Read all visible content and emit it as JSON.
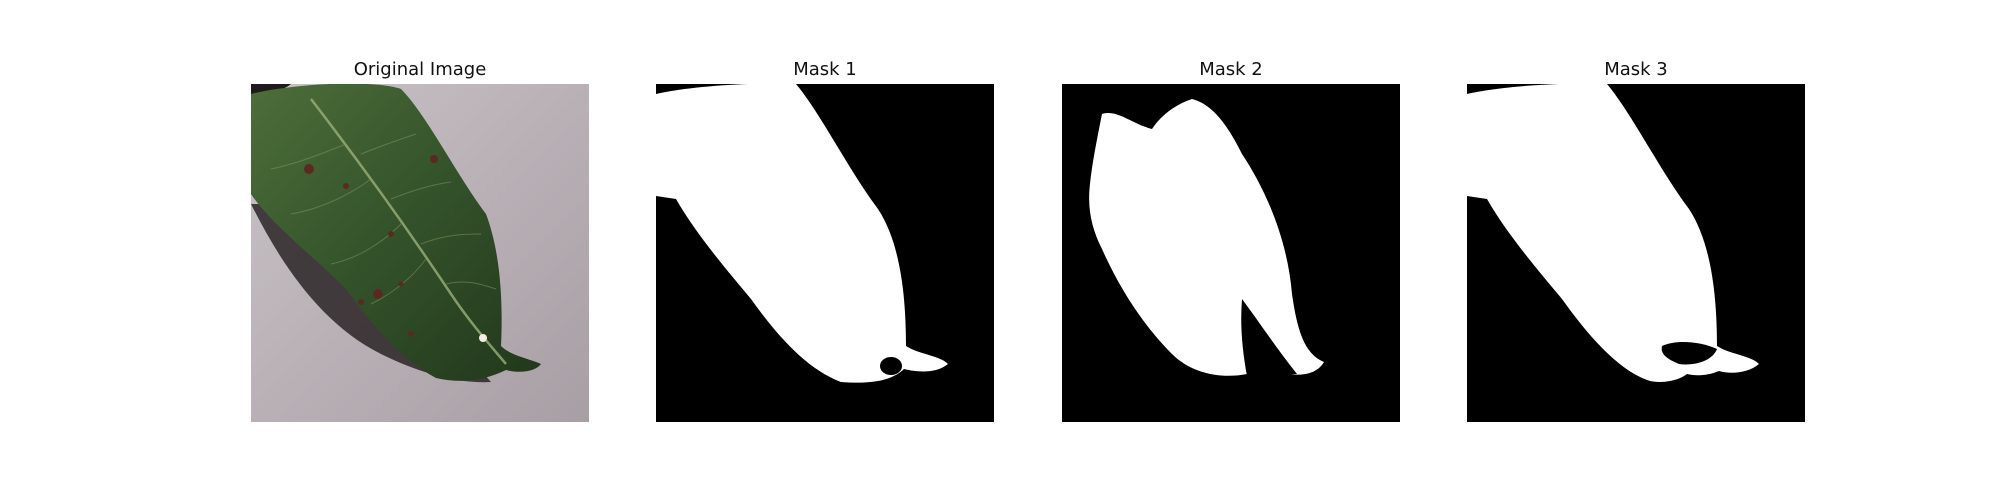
{
  "figure": {
    "panels": [
      {
        "title": "Original Image",
        "kind": "photo"
      },
      {
        "title": "Mask 1",
        "kind": "mask"
      },
      {
        "title": "Mask 2",
        "kind": "mask"
      },
      {
        "title": "Mask 3",
        "kind": "mask"
      }
    ],
    "colors": {
      "mask_foreground": "#ffffff",
      "mask_background": "#000000",
      "leaf": "#3a5a2a",
      "surface": "#b9b2b6",
      "shadow": "#2a2426"
    }
  }
}
